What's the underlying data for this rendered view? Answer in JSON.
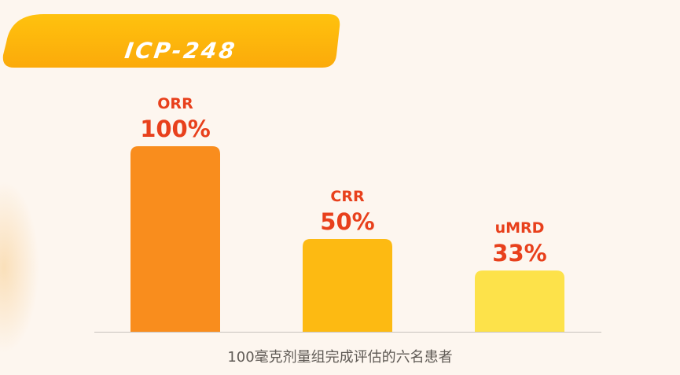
{
  "title": "ICP-248",
  "colors": {
    "background": "#fdf6ef",
    "banner_light": "#ffc20e",
    "banner_dark": "#fbaa0a",
    "label": "#e8401c",
    "axis": "#c8c3bd"
  },
  "chart_data": {
    "type": "bar",
    "categories": [
      "ORR",
      "CRR",
      "uMRD"
    ],
    "values": [
      100,
      50,
      33
    ],
    "value_labels": [
      "100%",
      "50%",
      "33%"
    ],
    "bar_colors": [
      "#f98d1d",
      "#fdba12",
      "#fde24a"
    ],
    "ylim": [
      0,
      100
    ],
    "grid": false,
    "xlabel": "100毫克剂量组完成评估的六名患者"
  }
}
